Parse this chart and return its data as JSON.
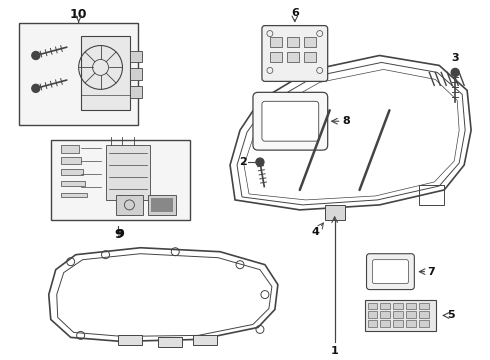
{
  "background_color": "#ffffff",
  "line_color": "#444444",
  "text_color": "#111111",
  "fig_w": 4.9,
  "fig_h": 3.6,
  "dpi": 100
}
